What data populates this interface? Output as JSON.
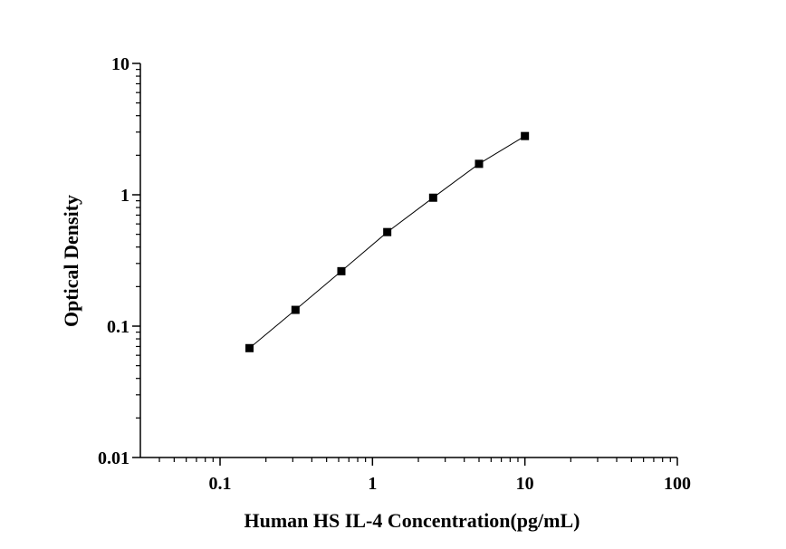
{
  "chart_data": {
    "type": "scatter",
    "title": "",
    "xlabel": "Human HS IL-4 Concentration(pg/mL)",
    "ylabel": "Optical Density",
    "x_scale": "log",
    "y_scale": "log",
    "xlim": [
      0.03,
      100
    ],
    "ylim": [
      0.01,
      10
    ],
    "x_ticks": [
      {
        "value": 0.1,
        "label": "0.1"
      },
      {
        "value": 1,
        "label": "1"
      },
      {
        "value": 10,
        "label": "10"
      },
      {
        "value": 100,
        "label": "100"
      }
    ],
    "y_ticks": [
      {
        "value": 0.01,
        "label": "0.01"
      },
      {
        "value": 0.1,
        "label": "0.1"
      },
      {
        "value": 1,
        "label": "1"
      },
      {
        "value": 10,
        "label": "10"
      }
    ],
    "grid": false,
    "legend": "none",
    "series": [
      {
        "x": [
          0.156,
          0.3125,
          0.625,
          1.25,
          2.5,
          5,
          10
        ],
        "y": [
          0.068,
          0.133,
          0.262,
          0.52,
          0.95,
          1.72,
          2.8
        ],
        "marker": "square",
        "line": true,
        "color": "#000000"
      }
    ]
  }
}
